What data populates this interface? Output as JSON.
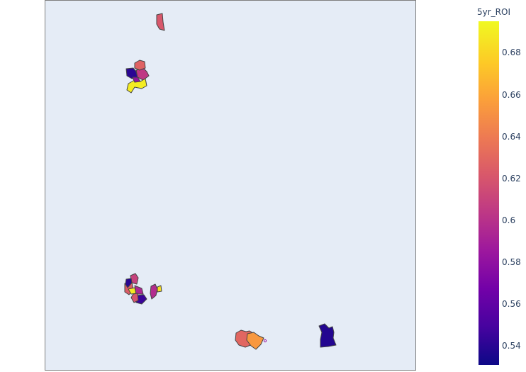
{
  "colorbar": {
    "title": "5yr_ROI",
    "ticks": [
      "0.68",
      "0.66",
      "0.64",
      "0.62",
      "0.6",
      "0.58",
      "0.56",
      "0.54"
    ],
    "tick_values": [
      0.68,
      0.66,
      0.64,
      0.62,
      0.6,
      0.58,
      0.56,
      0.54
    ],
    "range": [
      0.531,
      0.695
    ],
    "colorscale": [
      "#0d0887",
      "#46039f",
      "#7201a8",
      "#9c179e",
      "#bd3786",
      "#d8576b",
      "#ed7953",
      "#fb9f3a",
      "#fdca26",
      "#f0f921"
    ]
  },
  "map": {
    "background": "#e5ecf6",
    "region_outline": "#444444"
  },
  "chart_data": {
    "type": "choropleth",
    "color_variable": "5yr_ROI",
    "regions": [
      {
        "value": 0.622
      },
      {
        "value": 0.54
      },
      {
        "value": 0.605
      },
      {
        "value": 0.628
      },
      {
        "value": 0.69
      },
      {
        "value": 0.582
      },
      {
        "value": 0.61
      },
      {
        "value": 0.625
      },
      {
        "value": 0.54
      },
      {
        "value": 0.688
      },
      {
        "value": 0.595
      },
      {
        "value": 0.545
      },
      {
        "value": 0.62
      },
      {
        "value": 0.598
      },
      {
        "value": 0.685
      },
      {
        "value": 0.63
      },
      {
        "value": 0.655
      },
      {
        "value": 0.538
      }
    ]
  }
}
